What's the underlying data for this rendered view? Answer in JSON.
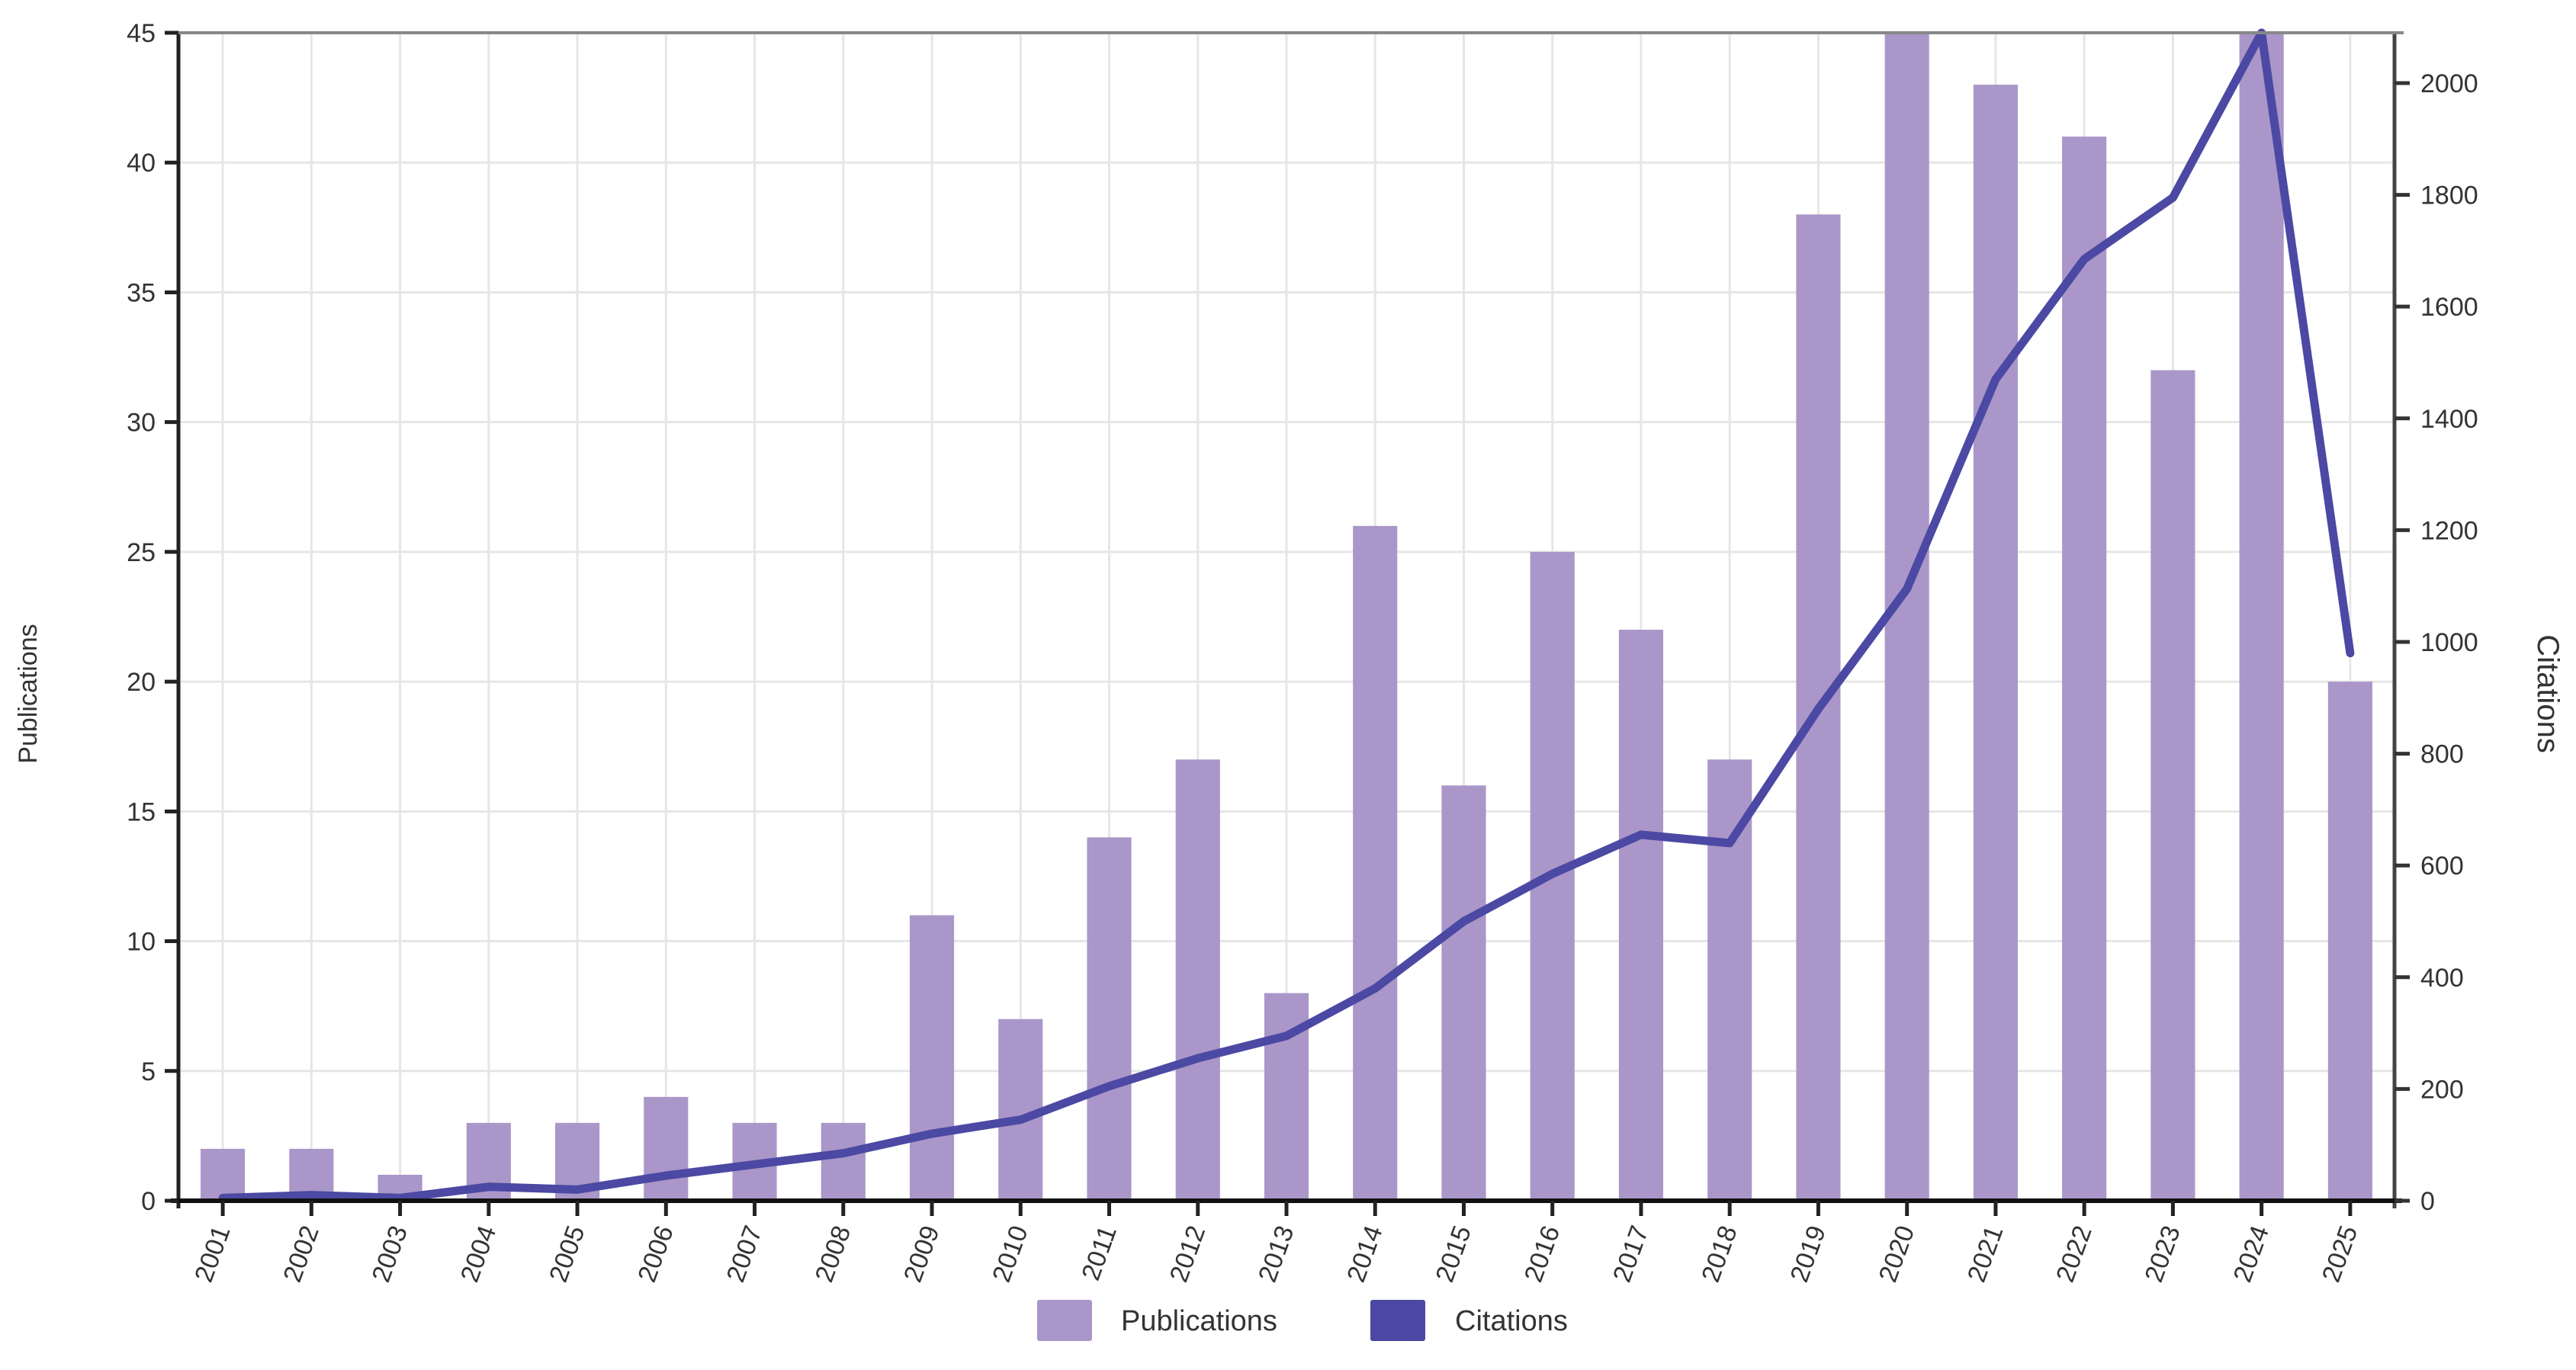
{
  "chart_data": {
    "type": "bar+line",
    "title": "",
    "categories": [
      "2001",
      "2002",
      "2003",
      "2004",
      "2005",
      "2006",
      "2007",
      "2008",
      "2009",
      "2010",
      "2011",
      "2012",
      "2013",
      "2014",
      "2015",
      "2016",
      "2017",
      "2018",
      "2019",
      "2020",
      "2021",
      "2022",
      "2023",
      "2024",
      "2025"
    ],
    "series": [
      {
        "name": "Publications",
        "type": "bar",
        "axis": "left",
        "color": "#AA96C8",
        "values": [
          2,
          2,
          1,
          3,
          3,
          4,
          3,
          3,
          11,
          7,
          14,
          17,
          8,
          26,
          16,
          25,
          22,
          17,
          38,
          45,
          43,
          41,
          32,
          45,
          20
        ]
      },
      {
        "name": "Citations",
        "type": "line",
        "axis": "right",
        "color": "#4B49A3",
        "values": [
          5,
          10,
          5,
          25,
          20,
          45,
          65,
          85,
          120,
          145,
          205,
          255,
          295,
          380,
          500,
          585,
          655,
          640,
          880,
          1095,
          1470,
          1685,
          1795,
          2090,
          980
        ]
      }
    ],
    "xlabel": "",
    "ylabel": "Publications",
    "y2label": "Citations",
    "ylim": [
      0,
      45
    ],
    "y2lim": [
      0,
      2090
    ],
    "yticks": [
      0,
      5,
      10,
      15,
      20,
      25,
      30,
      35,
      40,
      45
    ],
    "y2ticks": [
      0,
      200,
      400,
      600,
      800,
      1000,
      1200,
      1400,
      1600,
      1800,
      2000
    ],
    "grid": true,
    "legend_position": "bottom-center",
    "xtick_rotation": -70
  },
  "legend": {
    "items": [
      {
        "label": "Publications",
        "color": "#AA96C8"
      },
      {
        "label": "Citations",
        "color": "#4B49A3"
      }
    ]
  },
  "axes": {
    "left_title": "Publications",
    "right_title": "Citations"
  }
}
